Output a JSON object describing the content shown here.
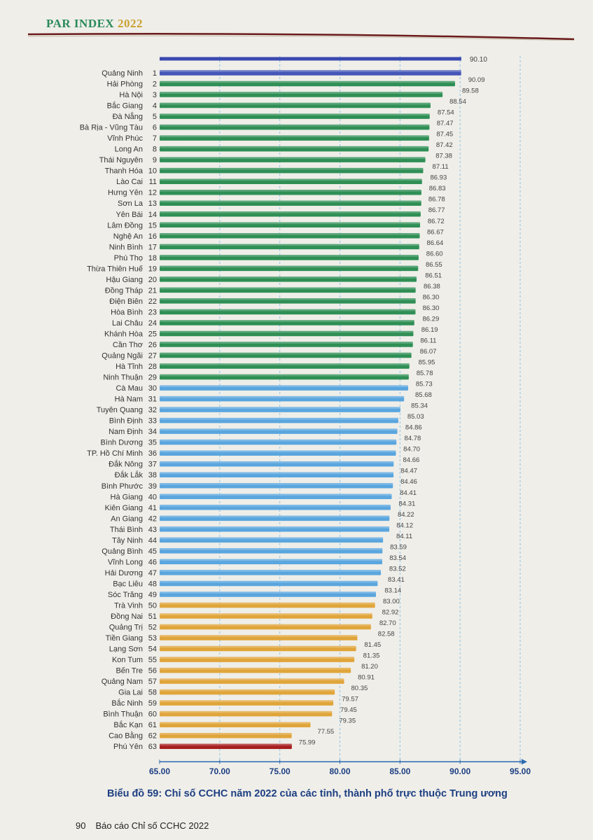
{
  "header": {
    "title_main": "PAR INDEX ",
    "title_year": "2022"
  },
  "caption": "Biểu đồ 59: Chỉ số CCHC năm 2022 của các tỉnh, thành phố trực thuộc Trung ương",
  "footer": {
    "page_number": "90",
    "text": "Báo cáo Chỉ số CCHC 2022"
  },
  "colors": {
    "blue_top": "#4556b8",
    "green": "#2f8f55",
    "light_blue": "#5aa6de",
    "orange": "#e0a53a",
    "red": "#a82020"
  },
  "chart_data": {
    "type": "bar",
    "orientation": "horizontal",
    "title": "Biểu đồ 59: Chỉ số CCHC năm 2022 của các tỉnh, thành phố trực thuộc Trung ương",
    "xlim": [
      65,
      95
    ],
    "xticks": [
      "65.00",
      "70.00",
      "75.00",
      "80.00",
      "85.00",
      "90.00",
      "95.00"
    ],
    "max_line": {
      "label": "90.10",
      "value": 90.1
    },
    "grid": "vertical-dashed",
    "bars": [
      {
        "name": "Quảng Ninh",
        "rank": "1",
        "value": 90.09,
        "label": "90.09",
        "group": "blue_top"
      },
      {
        "name": "Hải Phòng",
        "rank": "2",
        "value": 89.58,
        "label": "89.58",
        "group": "green"
      },
      {
        "name": "Hà Nội",
        "rank": "3",
        "value": 88.54,
        "label": "88.54",
        "group": "green"
      },
      {
        "name": "Bắc Giang",
        "rank": "4",
        "value": 87.54,
        "label": "87.54",
        "group": "green"
      },
      {
        "name": "Đà Nẵng",
        "rank": "5",
        "value": 87.47,
        "label": "87.47",
        "group": "green"
      },
      {
        "name": "Bà Rịa - Vũng Tàu",
        "rank": "6",
        "value": 87.45,
        "label": "87.45",
        "group": "green"
      },
      {
        "name": "Vĩnh Phúc",
        "rank": "7",
        "value": 87.42,
        "label": "87.42",
        "group": "green"
      },
      {
        "name": "Long An",
        "rank": "8",
        "value": 87.38,
        "label": "87.38",
        "group": "green"
      },
      {
        "name": "Thái Nguyên",
        "rank": "9",
        "value": 87.11,
        "label": "87.11",
        "group": "green"
      },
      {
        "name": "Thanh Hóa",
        "rank": "10",
        "value": 86.93,
        "label": "86.93",
        "group": "green"
      },
      {
        "name": "Lào Cai",
        "rank": "11",
        "value": 86.83,
        "label": "86.83",
        "group": "green"
      },
      {
        "name": "Hưng Yên",
        "rank": "12",
        "value": 86.78,
        "label": "86.78",
        "group": "green"
      },
      {
        "name": "Sơn La",
        "rank": "13",
        "value": 86.77,
        "label": "86.77",
        "group": "green"
      },
      {
        "name": "Yên Bái",
        "rank": "14",
        "value": 86.72,
        "label": "86.72",
        "group": "green"
      },
      {
        "name": "Lâm Đồng",
        "rank": "15",
        "value": 86.67,
        "label": "86.67",
        "group": "green"
      },
      {
        "name": "Nghệ An",
        "rank": "16",
        "value": 86.64,
        "label": "86.64",
        "group": "green"
      },
      {
        "name": "Ninh Bình",
        "rank": "17",
        "value": 86.6,
        "label": "86.60",
        "group": "green"
      },
      {
        "name": "Phú Thọ",
        "rank": "18",
        "value": 86.55,
        "label": "86.55",
        "group": "green"
      },
      {
        "name": "Thừa Thiên Huế",
        "rank": "19",
        "value": 86.51,
        "label": "86.51",
        "group": "green"
      },
      {
        "name": "Hậu Giang",
        "rank": "20",
        "value": 86.38,
        "label": "86.38",
        "group": "green"
      },
      {
        "name": "Đồng Tháp",
        "rank": "21",
        "value": 86.3,
        "label": "86.30",
        "group": "green"
      },
      {
        "name": "Điện Biên",
        "rank": "22",
        "value": 86.3,
        "label": "86.30",
        "group": "green"
      },
      {
        "name": "Hòa Bình",
        "rank": "23",
        "value": 86.29,
        "label": "86.29",
        "group": "green"
      },
      {
        "name": "Lai Châu",
        "rank": "24",
        "value": 86.19,
        "label": "86.19",
        "group": "green"
      },
      {
        "name": "Khánh Hòa",
        "rank": "25",
        "value": 86.11,
        "label": "86.11",
        "group": "green"
      },
      {
        "name": "Cần Thơ",
        "rank": "26",
        "value": 86.07,
        "label": "86.07",
        "group": "green"
      },
      {
        "name": "Quảng Ngãi",
        "rank": "27",
        "value": 85.95,
        "label": "85.95",
        "group": "green"
      },
      {
        "name": "Hà Tĩnh",
        "rank": "28",
        "value": 85.78,
        "label": "85.78",
        "group": "green"
      },
      {
        "name": "Ninh Thuận",
        "rank": "29",
        "value": 85.73,
        "label": "85.73",
        "group": "green"
      },
      {
        "name": "Cà Mau",
        "rank": "30",
        "value": 85.68,
        "label": "85.68",
        "group": "light_blue"
      },
      {
        "name": "Hà Nam",
        "rank": "31",
        "value": 85.34,
        "label": "85.34",
        "group": "light_blue"
      },
      {
        "name": "Tuyên Quang",
        "rank": "32",
        "value": 85.03,
        "label": "85.03",
        "group": "light_blue"
      },
      {
        "name": "Bình Định",
        "rank": "33",
        "value": 84.86,
        "label": "84.86",
        "group": "light_blue"
      },
      {
        "name": "Nam Định",
        "rank": "34",
        "value": 84.78,
        "label": "84.78",
        "group": "light_blue"
      },
      {
        "name": "Bình Dương",
        "rank": "35",
        "value": 84.7,
        "label": "84.70",
        "group": "light_blue"
      },
      {
        "name": "TP. Hồ Chí Minh",
        "rank": "36",
        "value": 84.66,
        "label": "84.66",
        "group": "light_blue"
      },
      {
        "name": "Đắk Nông",
        "rank": "37",
        "value": 84.47,
        "label": "84.47",
        "group": "light_blue"
      },
      {
        "name": "Đắk Lắk",
        "rank": "38",
        "value": 84.46,
        "label": "84.46",
        "group": "light_blue"
      },
      {
        "name": "Bình Phước",
        "rank": "39",
        "value": 84.41,
        "label": "84.41",
        "group": "light_blue"
      },
      {
        "name": "Hà Giang",
        "rank": "40",
        "value": 84.31,
        "label": "84.31",
        "group": "light_blue"
      },
      {
        "name": "Kiên Giang",
        "rank": "41",
        "value": 84.22,
        "label": "84.22",
        "group": "light_blue"
      },
      {
        "name": "An Giang",
        "rank": "42",
        "value": 84.12,
        "label": "84.12",
        "group": "light_blue"
      },
      {
        "name": "Thái Bình",
        "rank": "43",
        "value": 84.11,
        "label": "84.11",
        "group": "light_blue"
      },
      {
        "name": "Tây Ninh",
        "rank": "44",
        "value": 83.59,
        "label": "83.59",
        "group": "light_blue"
      },
      {
        "name": "Quảng Bình",
        "rank": "45",
        "value": 83.54,
        "label": "83.54",
        "group": "light_blue"
      },
      {
        "name": "Vĩnh Long",
        "rank": "46",
        "value": 83.52,
        "label": "83.52",
        "group": "light_blue"
      },
      {
        "name": "Hải Dương",
        "rank": "47",
        "value": 83.41,
        "label": "83.41",
        "group": "light_blue"
      },
      {
        "name": "Bạc Liêu",
        "rank": "48",
        "value": 83.14,
        "label": "83.14",
        "group": "light_blue"
      },
      {
        "name": "Sóc Trăng",
        "rank": "49",
        "value": 83.0,
        "label": "83.00",
        "group": "light_blue"
      },
      {
        "name": "Trà Vinh",
        "rank": "50",
        "value": 82.92,
        "label": "82.92",
        "group": "orange"
      },
      {
        "name": "Đồng Nai",
        "rank": "51",
        "value": 82.7,
        "label": "82.70",
        "group": "orange"
      },
      {
        "name": "Quảng Trị",
        "rank": "52",
        "value": 82.58,
        "label": "82.58",
        "group": "orange"
      },
      {
        "name": "Tiền Giang",
        "rank": "53",
        "value": 81.45,
        "label": "81.45",
        "group": "orange"
      },
      {
        "name": "Lạng Sơn",
        "rank": "54",
        "value": 81.35,
        "label": "81.35",
        "group": "orange"
      },
      {
        "name": "Kon Tum",
        "rank": "55",
        "value": 81.2,
        "label": "81.20",
        "group": "orange"
      },
      {
        "name": "Bến Tre",
        "rank": "56",
        "value": 80.91,
        "label": "80.91",
        "group": "orange"
      },
      {
        "name": "Quảng Nam",
        "rank": "57",
        "value": 80.35,
        "label": "80.35",
        "group": "orange"
      },
      {
        "name": "Gia Lai",
        "rank": "58",
        "value": 79.57,
        "label": "79.57",
        "group": "orange"
      },
      {
        "name": "Bắc Ninh",
        "rank": "59",
        "value": 79.45,
        "label": "79.45",
        "group": "orange"
      },
      {
        "name": "Bình Thuận",
        "rank": "60",
        "value": 79.35,
        "label": "79.35",
        "group": "orange"
      },
      {
        "name": "Bắc Kạn",
        "rank": "61",
        "value": 77.55,
        "label": "77.55",
        "group": "orange"
      },
      {
        "name": "Cao Bằng",
        "rank": "62",
        "value": 75.99,
        "label": "75.99",
        "group": "orange"
      },
      {
        "name": "Phú Yên",
        "rank": "63",
        "value": 76.0,
        "label": "",
        "group": "red"
      }
    ]
  }
}
